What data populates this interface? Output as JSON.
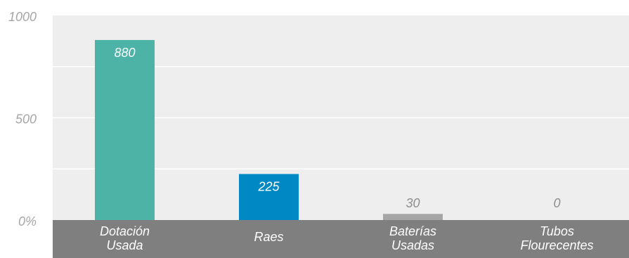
{
  "chart_data": {
    "type": "bar",
    "categories": [
      [
        "Dotación",
        "Usada"
      ],
      [
        "Raes"
      ],
      [
        "Baterías",
        "Usadas"
      ],
      [
        "Tubos",
        "Flourecentes"
      ]
    ],
    "values": [
      880,
      225,
      30,
      0
    ],
    "data_labels": [
      "880",
      "225",
      "30",
      "0"
    ],
    "colors": [
      "#4db3a6",
      "#0088c4",
      "#a6a6a6",
      "#a6a6a6"
    ],
    "ylim": [
      0,
      1000
    ],
    "y_ticks": [
      {
        "value": 1000,
        "label": "1000"
      },
      {
        "value": 500,
        "label": "500"
      },
      {
        "value": 0,
        "label": "0%"
      }
    ],
    "gridlines": [
      250,
      500,
      750
    ],
    "grid": true,
    "legend": "none",
    "colors_theme": {
      "plot_background": "#eeeeee",
      "category_band": "#7f7f7f",
      "gridline": "#ffffff",
      "tick_text": "#a6a6a6"
    }
  }
}
